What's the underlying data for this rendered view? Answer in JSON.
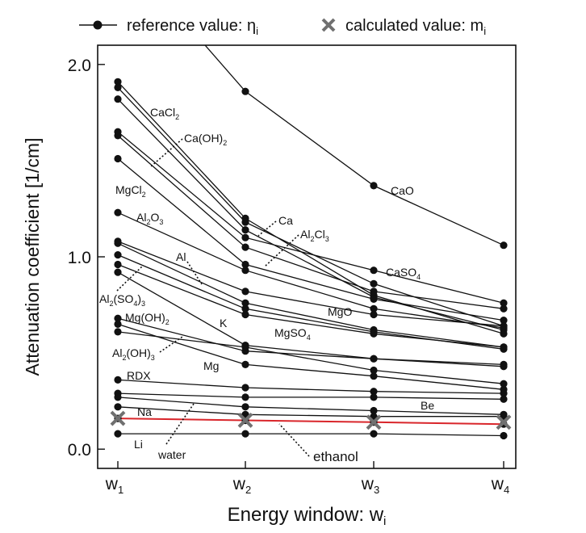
{
  "chart_data": {
    "type": "line",
    "title": "",
    "xlabel": "Energy window: w",
    "xlabel_sub": "i",
    "ylabel": "Attenuation coefficient [1/cm]",
    "ylim": [
      -0.1,
      2.1
    ],
    "yticks": [
      "0.0",
      "1.0",
      "2.0"
    ],
    "categories": [
      {
        "main": "w",
        "sub": "1"
      },
      {
        "main": "w",
        "sub": "2"
      },
      {
        "main": "w",
        "sub": "3"
      },
      {
        "main": "w",
        "sub": "4"
      }
    ],
    "legend": {
      "position": "top",
      "reference": {
        "text": "reference value: η",
        "sub": "i"
      },
      "calculated": {
        "text": "calculated value: m",
        "sub": "i"
      }
    },
    "colors": {
      "reference": "#111111",
      "calculated": "#707070",
      "ethanol": "#d9262b"
    },
    "series": [
      {
        "name": "CaO",
        "values": [
          2.62,
          1.86,
          1.37,
          1.06
        ]
      },
      {
        "name": "CaCl2",
        "values": [
          1.91,
          1.2,
          0.8,
          0.6
        ]
      },
      {
        "name": "Ca",
        "values": [
          1.88,
          1.18,
          0.86,
          0.64
        ]
      },
      {
        "name": "Ca(OH)2",
        "values": [
          1.82,
          1.14,
          0.79,
          0.62
        ]
      },
      {
        "name": "CaSO4",
        "values": [
          1.65,
          1.1,
          0.93,
          0.76
        ]
      },
      {
        "name": "Al2Cl3",
        "values": [
          1.63,
          1.05,
          0.82,
          0.73
        ]
      },
      {
        "name": "MgCl2",
        "values": [
          1.51,
          0.96,
          0.78,
          0.67
        ]
      },
      {
        "name": "Al2O3",
        "values": [
          1.23,
          0.93,
          0.73,
          0.63
        ]
      },
      {
        "name": "MgO",
        "values": [
          1.08,
          0.82,
          0.7,
          0.64
        ]
      },
      {
        "name": "Al",
        "values": [
          1.07,
          0.76,
          0.62,
          0.53
        ]
      },
      {
        "name": "Al2(SO4)3",
        "values": [
          1.01,
          0.73,
          0.61,
          0.52
        ]
      },
      {
        "name": "MgSO4",
        "values": [
          0.96,
          0.7,
          0.6,
          0.53
        ]
      },
      {
        "name": "K",
        "values": [
          0.92,
          0.54,
          0.47,
          0.44
        ]
      },
      {
        "name": "Mg(OH)2",
        "values": [
          0.68,
          0.51,
          0.47,
          0.43
        ]
      },
      {
        "name": "Mg",
        "values": [
          0.65,
          0.44,
          0.38,
          0.31
        ]
      },
      {
        "name": "Al2(OH)3",
        "values": [
          0.61,
          0.53,
          0.41,
          0.34
        ]
      },
      {
        "name": "RDX",
        "values": [
          0.36,
          0.32,
          0.3,
          0.29
        ]
      },
      {
        "name": "Be",
        "values": [
          0.29,
          0.27,
          0.27,
          0.26
        ]
      },
      {
        "name": "Na",
        "values": [
          0.27,
          0.22,
          0.2,
          0.18
        ]
      },
      {
        "name": "water",
        "values": [
          0.22,
          0.18,
          0.17,
          0.17
        ]
      },
      {
        "name": "ethanol",
        "values": [
          0.16,
          0.15,
          0.14,
          0.13
        ]
      },
      {
        "name": "Li",
        "values": [
          0.08,
          0.08,
          0.08,
          0.07
        ]
      }
    ],
    "calculated_ethanol": [
      0.16,
      0.15,
      0.14,
      0.14
    ],
    "labels": [
      {
        "id": "CaO",
        "parts": [
          {
            "t": "CaO"
          }
        ]
      },
      {
        "id": "CaCl2",
        "parts": [
          {
            "t": "CaCl"
          },
          {
            "t": "2",
            "sub": true
          }
        ]
      },
      {
        "id": "Ca(OH)2",
        "parts": [
          {
            "t": "Ca(OH)"
          },
          {
            "t": "2",
            "sub": true
          }
        ]
      },
      {
        "id": "MgCl2",
        "parts": [
          {
            "t": "MgCl"
          },
          {
            "t": "2",
            "sub": true
          }
        ]
      },
      {
        "id": "Ca",
        "parts": [
          {
            "t": "Ca"
          }
        ]
      },
      {
        "id": "Al2Cl3",
        "parts": [
          {
            "t": "Al"
          },
          {
            "t": "2",
            "sub": true
          },
          {
            "t": "Cl"
          },
          {
            "t": "3",
            "sub": true
          }
        ]
      },
      {
        "id": "Al2O3",
        "parts": [
          {
            "t": "Al"
          },
          {
            "t": "2",
            "sub": true
          },
          {
            "t": "O"
          },
          {
            "t": "3",
            "sub": true
          }
        ]
      },
      {
        "id": "CaSO4",
        "parts": [
          {
            "t": "CaSO"
          },
          {
            "t": "4",
            "sub": true
          }
        ]
      },
      {
        "id": "Al",
        "parts": [
          {
            "t": "Al"
          }
        ]
      },
      {
        "id": "Al2(SO4)3",
        "parts": [
          {
            "t": "Al"
          },
          {
            "t": "2",
            "sub": true
          },
          {
            "t": "(SO"
          },
          {
            "t": "4",
            "sub": true
          },
          {
            "t": ")"
          },
          {
            "t": "3",
            "sub": true
          }
        ]
      },
      {
        "id": "Mg(OH)2",
        "parts": [
          {
            "t": "Mg(OH)"
          },
          {
            "t": "2",
            "sub": true
          }
        ]
      },
      {
        "id": "MgO",
        "parts": [
          {
            "t": "MgO"
          }
        ]
      },
      {
        "id": "K",
        "parts": [
          {
            "t": "K"
          }
        ]
      },
      {
        "id": "MgSO4",
        "parts": [
          {
            "t": "MgSO"
          },
          {
            "t": "4",
            "sub": true
          }
        ]
      },
      {
        "id": "Al2(OH)3",
        "parts": [
          {
            "t": "Al"
          },
          {
            "t": "2",
            "sub": true
          },
          {
            "t": "(OH)"
          },
          {
            "t": "3",
            "sub": true
          }
        ]
      },
      {
        "id": "Mg",
        "parts": [
          {
            "t": "Mg"
          }
        ]
      },
      {
        "id": "RDX",
        "parts": [
          {
            "t": "RDX"
          }
        ]
      },
      {
        "id": "Na",
        "parts": [
          {
            "t": "Na"
          }
        ]
      },
      {
        "id": "Be",
        "parts": [
          {
            "t": "Be"
          }
        ]
      },
      {
        "id": "Li",
        "parts": [
          {
            "t": "Li"
          }
        ]
      },
      {
        "id": "water",
        "parts": [
          {
            "t": "water"
          }
        ]
      },
      {
        "id": "ethanol",
        "parts": [
          {
            "t": "ethanol"
          }
        ]
      }
    ]
  }
}
